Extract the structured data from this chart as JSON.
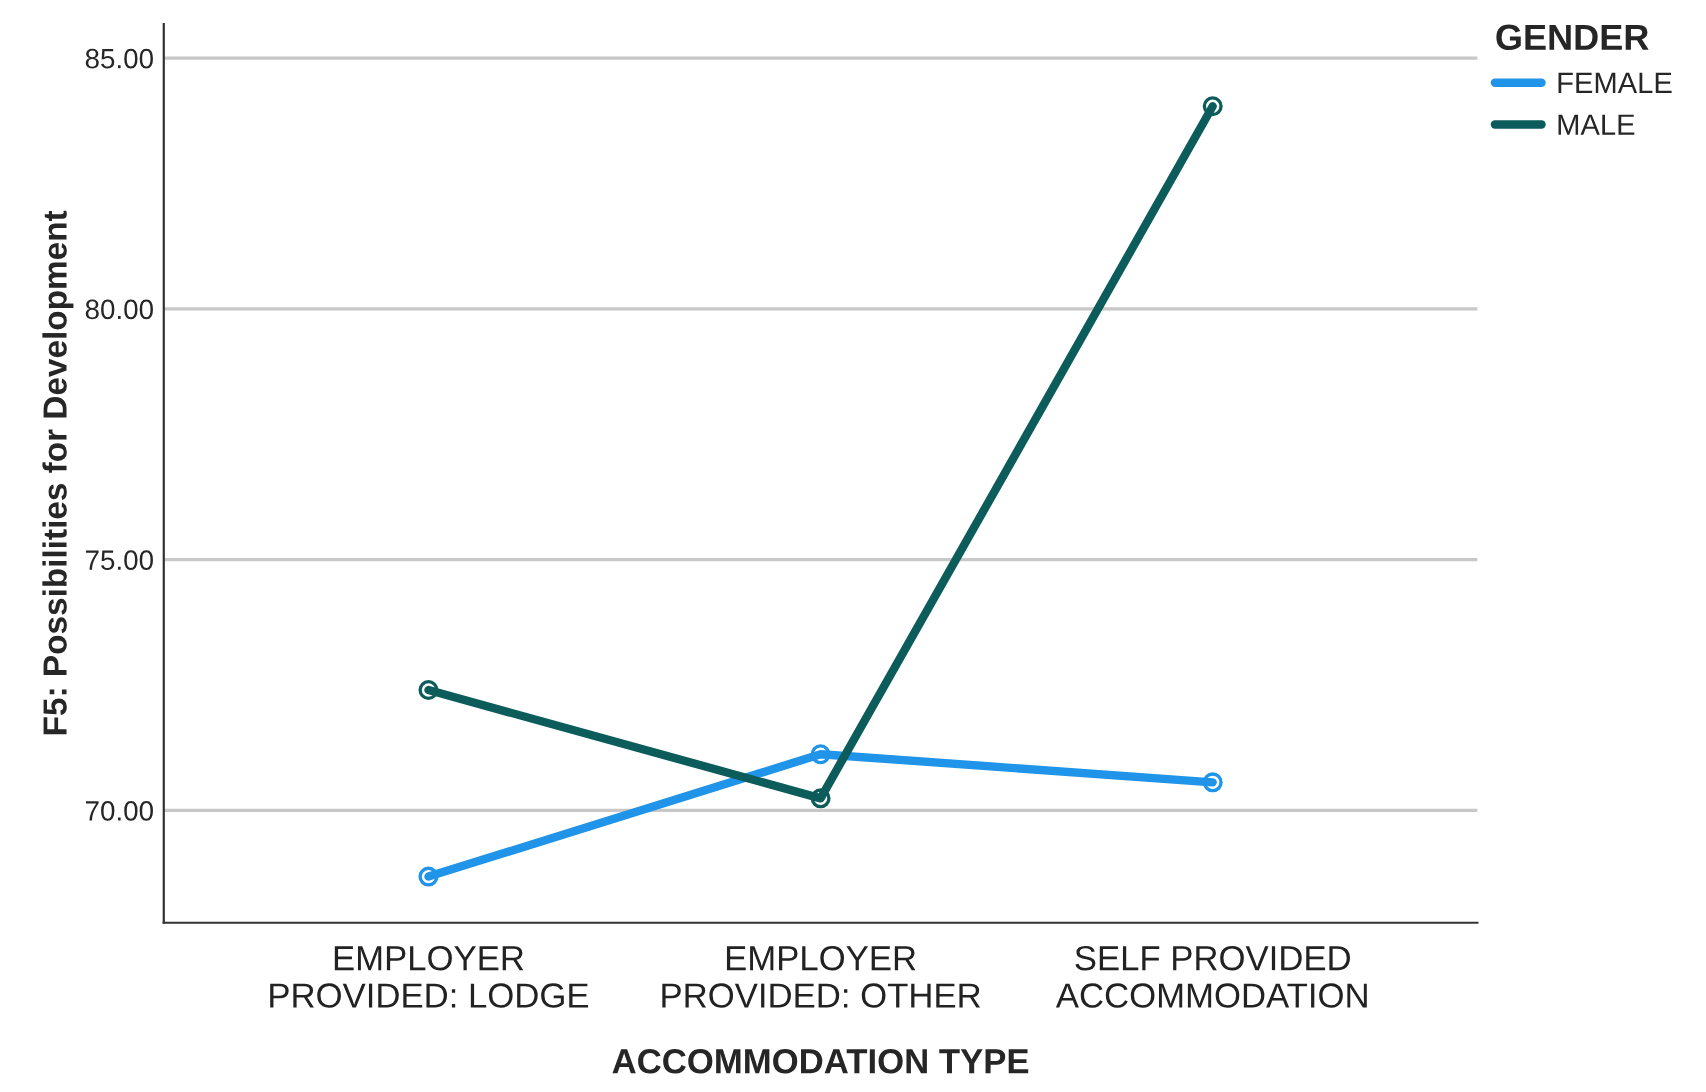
{
  "chart_data": {
    "type": "line",
    "xlabel": "ACCOMMODATION TYPE",
    "ylabel": "F5: Possibilities for Development",
    "legend_title": "GENDER",
    "categories": [
      "EMPLOYER\nPROVIDED: LODGE",
      "EMPLOYER\nPROVIDED: OTHER",
      "SELF PROVIDED\nACCOMMODATION"
    ],
    "series": [
      {
        "name": "FEMALE",
        "color": "#1f94e8",
        "values": [
          68.68,
          71.12,
          70.56
        ]
      },
      {
        "name": "MALE",
        "color": "#0d5c5c",
        "values": [
          72.4,
          70.24,
          84.04
        ]
      }
    ],
    "ylim": [
      67.76,
      85.68
    ],
    "yticks": [
      {
        "value": 70,
        "label": "70.00"
      },
      {
        "value": 75,
        "label": "75.00"
      },
      {
        "value": 80,
        "label": "80.00"
      },
      {
        "value": 85,
        "label": "85.00"
      }
    ],
    "grid": "y",
    "legend": "top right",
    "marker": "circle",
    "line_style": "solid"
  }
}
